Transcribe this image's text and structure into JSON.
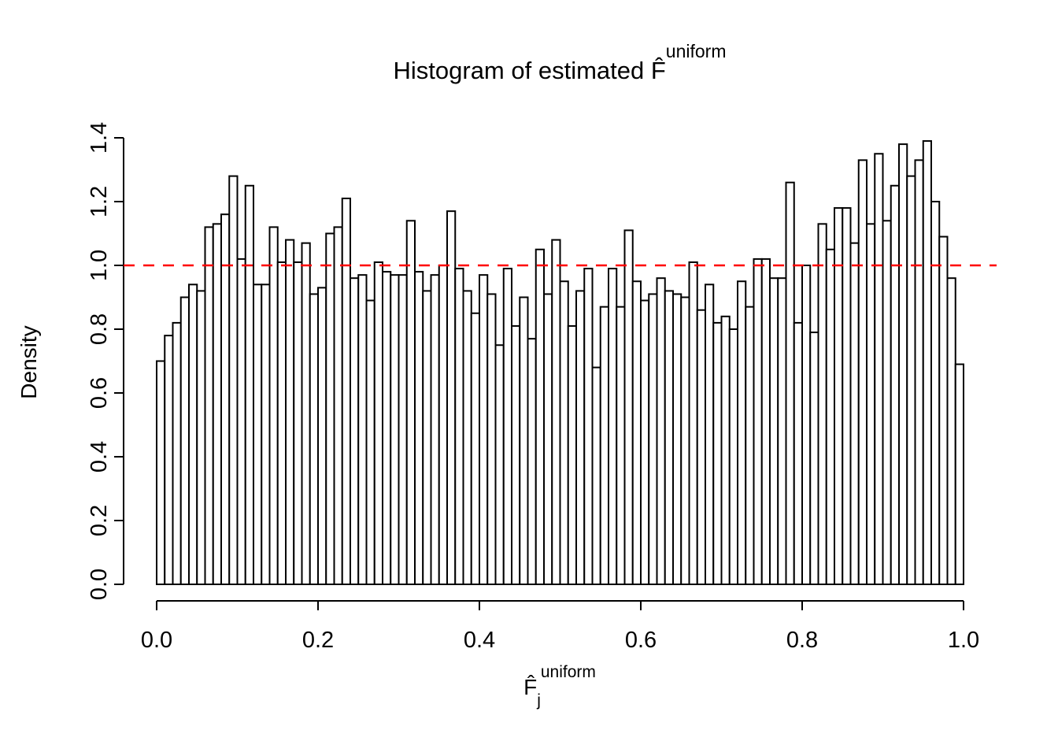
{
  "figure": {
    "title": {
      "prefix": "Histogram of estimated ",
      "f_hat": "F̂",
      "superscript": "uniform"
    },
    "x_axis": {
      "label": {
        "f_hat": "F̂",
        "subscript": "j",
        "superscript": "uniform"
      },
      "tick_labels": [
        "0.0",
        "0.2",
        "0.4",
        "0.6",
        "0.8",
        "1.0"
      ],
      "tick_values": [
        0,
        0.2,
        0.4,
        0.6,
        0.8,
        1.0
      ]
    },
    "y_axis": {
      "label": "Density",
      "tick_labels": [
        "0.0",
        "0.2",
        "0.4",
        "0.6",
        "0.8",
        "1.0",
        "1.2",
        "1.4"
      ],
      "tick_values": [
        0,
        0.2,
        0.4,
        0.6,
        0.8,
        1.0,
        1.2,
        1.4
      ]
    }
  },
  "chart_data": {
    "type": "bar",
    "subtype": "histogram",
    "title": "Histogram of estimated F̂^uniform",
    "xlabel": "F̂_j^uniform",
    "ylabel": "Density",
    "xlim": [
      0,
      1
    ],
    "ylim": [
      0,
      1.4
    ],
    "grid": false,
    "bin_start": 0,
    "bin_width": 0.01,
    "values": [
      0.7,
      0.78,
      0.82,
      0.9,
      0.94,
      0.92,
      1.12,
      1.13,
      1.16,
      1.28,
      1.02,
      1.25,
      0.94,
      0.94,
      1.12,
      1.01,
      1.08,
      1.01,
      1.07,
      0.91,
      0.93,
      1.1,
      1.12,
      1.21,
      0.96,
      0.97,
      0.89,
      1.01,
      0.98,
      0.97,
      0.97,
      1.14,
      0.98,
      0.92,
      0.97,
      1.0,
      1.17,
      0.99,
      0.92,
      0.85,
      0.97,
      0.91,
      0.75,
      0.99,
      0.81,
      0.9,
      0.77,
      1.05,
      0.91,
      1.08,
      0.95,
      0.81,
      0.92,
      0.99,
      0.68,
      0.87,
      0.99,
      0.87,
      1.11,
      0.95,
      0.89,
      0.91,
      0.96,
      0.92,
      0.91,
      0.9,
      1.01,
      0.86,
      0.94,
      0.82,
      0.84,
      0.8,
      0.95,
      0.87,
      1.02,
      1.02,
      0.96,
      0.96,
      1.26,
      0.82,
      1.0,
      0.79,
      1.13,
      1.05,
      1.18,
      1.18,
      1.07,
      1.33,
      1.13,
      1.35,
      1.14,
      1.25,
      1.38,
      1.28,
      1.33,
      1.39,
      1.2,
      1.09,
      0.96,
      0.69
    ],
    "reference_line": {
      "y": 1.0,
      "color": "#FF0000",
      "style": "dashed"
    },
    "colors": {
      "bar_fill": "#FFFFFF",
      "bar_border": "#000000",
      "axis": "#000000"
    }
  }
}
